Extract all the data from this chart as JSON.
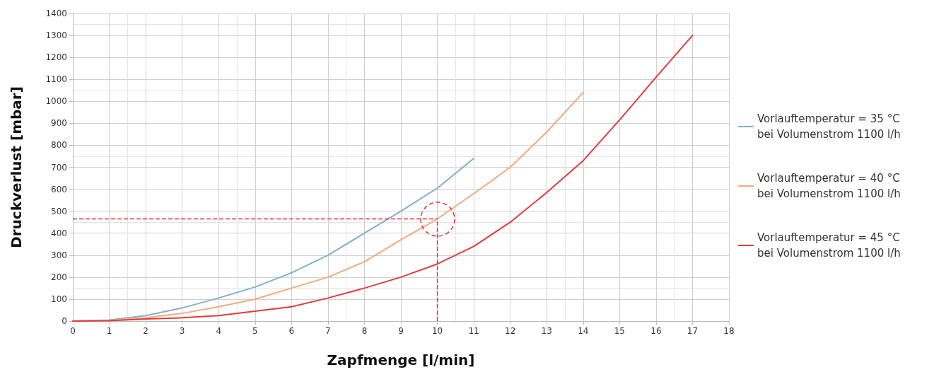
{
  "chart_data": {
    "type": "line",
    "xlabel": "Zapfmenge [l/min]",
    "ylabel": "Druckverlust [mbar]",
    "xlim": [
      0,
      18
    ],
    "xticks": [
      0,
      1,
      2,
      3,
      4,
      5,
      6,
      7,
      8,
      9,
      10,
      11,
      12,
      13,
      14,
      15,
      16,
      17,
      18
    ],
    "ylim": [
      0,
      1400
    ],
    "yticks": [
      0,
      100,
      200,
      300,
      400,
      500,
      600,
      700,
      800,
      900,
      1000,
      1100,
      1200,
      1300,
      1400
    ],
    "grid": true,
    "legend": "right",
    "marker": "none",
    "line_style": "solid",
    "series": [
      {
        "name": "Vorlauftemperatur = 35 °C bei Volumenstrom 1100 l/h",
        "color": "#7fb0cc",
        "x": [
          0,
          1,
          2,
          3,
          4,
          5,
          6,
          7,
          8,
          9,
          10,
          11
        ],
        "values": [
          0,
          5,
          25,
          60,
          105,
          155,
          220,
          300,
          400,
          500,
          605,
          740
        ]
      },
      {
        "name": "Vorlauftemperatur = 40 °C bei Volumenstrom 1100 l/h",
        "color": "#f4a97c",
        "x": [
          0,
          1,
          2,
          3,
          4,
          5,
          6,
          7,
          8,
          9,
          10,
          11,
          12,
          13,
          14
        ],
        "values": [
          0,
          3,
          15,
          35,
          65,
          100,
          150,
          200,
          270,
          370,
          465,
          580,
          700,
          860,
          1040
        ]
      },
      {
        "name": "Vorlauftemperatur = 45 °C bei Volumenstrom 1100 l/h",
        "color": "#e03c3c",
        "x": [
          0,
          1,
          2,
          3,
          4,
          5,
          6,
          7,
          8,
          9,
          10,
          11,
          12,
          13,
          14,
          15,
          16,
          17
        ],
        "values": [
          0,
          2,
          10,
          15,
          25,
          45,
          65,
          105,
          150,
          200,
          260,
          340,
          450,
          585,
          730,
          915,
          1110,
          1300
        ]
      }
    ],
    "ref_lines": [
      {
        "axis": "y",
        "value": 465,
        "color": "#e8333a",
        "line_style": "dashed"
      },
      {
        "axis": "x",
        "value": 10,
        "color": "#e8333a",
        "line_style": "dashed"
      }
    ]
  }
}
